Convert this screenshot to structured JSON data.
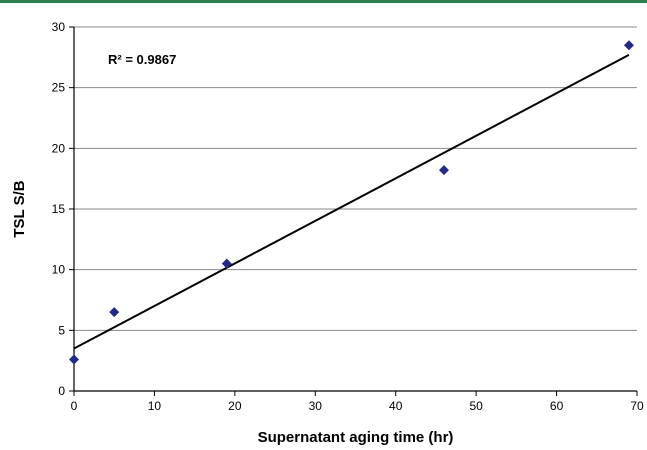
{
  "chart_data": {
    "type": "scatter",
    "title": "",
    "xlabel": "Supernatant aging time (hr)",
    "ylabel": "TSL S/B",
    "xlim": [
      0,
      70
    ],
    "ylim": [
      0,
      30
    ],
    "xticks": [
      "0",
      "10",
      "20",
      "30",
      "40",
      "50",
      "60",
      "70"
    ],
    "yticks": [
      "0",
      "5",
      "10",
      "15",
      "20",
      "25",
      "30"
    ],
    "grid": "horizontal",
    "legend": "none",
    "annotation": "R² = 0.9867",
    "series": [
      {
        "marker": "diamond",
        "color": "#1f2a8a",
        "points": [
          {
            "x": 0,
            "y": 2.6
          },
          {
            "x": 5,
            "y": 6.5
          },
          {
            "x": 19,
            "y": 10.5
          },
          {
            "x": 46,
            "y": 18.2
          },
          {
            "x": 69,
            "y": 28.5
          }
        ]
      }
    ],
    "trendline": {
      "type": "linear",
      "color": "#000000",
      "from": {
        "x": 0,
        "y": 3.5
      },
      "to": {
        "x": 69,
        "y": 27.7
      }
    }
  }
}
